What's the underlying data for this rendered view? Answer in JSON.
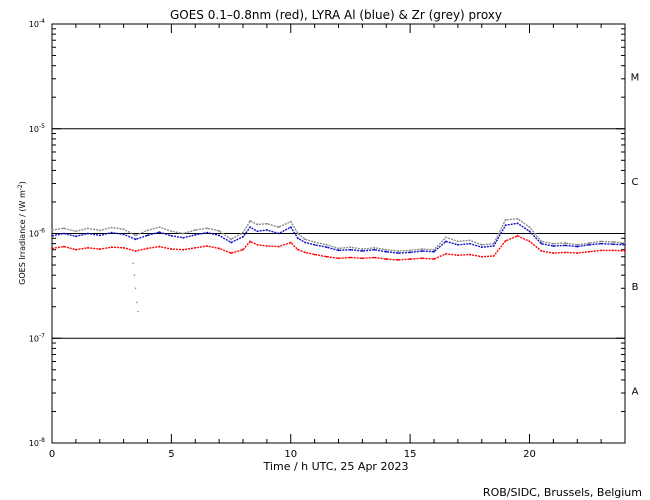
{
  "chart_data": {
    "type": "line",
    "title": "GOES 0.1–0.8nm (red), LYRA Al (blue) & Zr (grey) proxy",
    "xlabel": "Time / h UTC, 25 Apr 2023",
    "ylabel_main": "GOES Irradiance / (W m",
    "ylabel_sup": "-2",
    "ylabel_close": ")",
    "yscale": "log",
    "xlim": [
      0,
      24
    ],
    "ylim_exp": [
      -8,
      -4
    ],
    "x_ticks": [
      "0",
      "5",
      "10",
      "15",
      "20"
    ],
    "y_ticks": [
      {
        "exp": -8,
        "base": "10",
        "sup": "-8"
      },
      {
        "exp": -7,
        "base": "10",
        "sup": "-7"
      },
      {
        "exp": -6,
        "base": "10",
        "sup": "-6"
      },
      {
        "exp": -5,
        "base": "10",
        "sup": "-5"
      },
      {
        "exp": -4,
        "base": "10",
        "sup": "-4"
      }
    ],
    "flare_class_lines_exp": [
      -7,
      -6,
      -5
    ],
    "flare_classes": [
      {
        "label": "A",
        "exp": -7.5
      },
      {
        "label": "B",
        "exp": -6.5
      },
      {
        "label": "C",
        "exp": -5.5
      },
      {
        "label": "M",
        "exp": -4.5
      }
    ],
    "series": [
      {
        "name": "GOES 0.1–0.8nm",
        "color": "#ff0000",
        "x": [
          0,
          0.5,
          1,
          1.5,
          2,
          2.5,
          3,
          3.5,
          4,
          4.5,
          5,
          5.5,
          6,
          6.5,
          7,
          7.5,
          8,
          8.3,
          8.6,
          9,
          9.5,
          10,
          10.3,
          10.6,
          11,
          11.5,
          12,
          12.5,
          13,
          13.5,
          14,
          14.5,
          15,
          15.5,
          16,
          16.5,
          17,
          17.5,
          18,
          18.5,
          19,
          19.5,
          20,
          20.5,
          21,
          21.5,
          22,
          22.5,
          23,
          23.5,
          24
        ],
        "y": [
          7.2e-07,
          7.5e-07,
          7e-07,
          7.3e-07,
          7.1e-07,
          7.4e-07,
          7.3e-07,
          6.8e-07,
          7.2e-07,
          7.5e-07,
          7.1e-07,
          7e-07,
          7.3e-07,
          7.6e-07,
          7.2e-07,
          6.5e-07,
          7e-07,
          8.4e-07,
          7.8e-07,
          7.6e-07,
          7.5e-07,
          8.2e-07,
          7e-07,
          6.6e-07,
          6.3e-07,
          6e-07,
          5.8e-07,
          5.9e-07,
          5.8e-07,
          5.9e-07,
          5.7e-07,
          5.6e-07,
          5.7e-07,
          5.8e-07,
          5.7e-07,
          6.4e-07,
          6.2e-07,
          6.3e-07,
          6e-07,
          6.1e-07,
          8.5e-07,
          9.5e-07,
          8.4e-07,
          6.8e-07,
          6.5e-07,
          6.6e-07,
          6.5e-07,
          6.7e-07,
          6.9e-07,
          6.9e-07,
          6.8e-07
        ]
      },
      {
        "name": "LYRA Al proxy",
        "color": "#1010c8",
        "x": [
          0,
          0.5,
          1,
          1.5,
          2,
          2.5,
          3,
          3.5,
          4,
          4.5,
          5,
          5.5,
          6,
          6.5,
          7,
          7.5,
          8,
          8.3,
          8.6,
          9,
          9.5,
          10,
          10.3,
          10.6,
          11,
          11.5,
          12,
          12.5,
          13,
          13.5,
          14,
          14.5,
          15,
          15.5,
          16,
          16.5,
          17,
          17.5,
          18,
          18.5,
          19,
          19.5,
          20,
          20.5,
          21,
          21.5,
          22,
          22.5,
          23,
          23.5,
          24
        ],
        "y": [
          9.5e-07,
          1e-06,
          9.4e-07,
          1e-06,
          9.6e-07,
          1.02e-06,
          9.8e-07,
          8.8e-07,
          9.6e-07,
          1.03e-06,
          9.5e-07,
          9.1e-07,
          9.7e-07,
          1.02e-06,
          9.6e-07,
          8.2e-07,
          9.3e-07,
          1.15e-06,
          1.05e-06,
          1.08e-06,
          1e-06,
          1.15e-06,
          9e-07,
          8.2e-07,
          7.8e-07,
          7.4e-07,
          6.9e-07,
          7e-07,
          6.8e-07,
          7e-07,
          6.7e-07,
          6.5e-07,
          6.6e-07,
          6.8e-07,
          6.7e-07,
          8.4e-07,
          7.8e-07,
          8e-07,
          7.4e-07,
          7.6e-07,
          1.2e-06,
          1.25e-06,
          1.05e-06,
          8e-07,
          7.6e-07,
          7.7e-07,
          7.5e-07,
          7.8e-07,
          8e-07,
          7.9e-07,
          7.8e-07
        ]
      },
      {
        "name": "LYRA Zr proxy",
        "color": "#8c8c8c",
        "x": [
          0,
          0.5,
          1,
          1.5,
          2,
          2.5,
          3,
          3.5,
          4,
          4.5,
          5,
          5.5,
          6,
          6.5,
          7,
          7.5,
          8,
          8.3,
          8.6,
          9,
          9.5,
          10,
          10.3,
          10.6,
          11,
          11.5,
          12,
          12.5,
          13,
          13.5,
          14,
          14.5,
          15,
          15.5,
          16,
          16.5,
          17,
          17.5,
          18,
          18.5,
          19,
          19.5,
          20,
          20.5,
          21,
          21.5,
          22,
          22.5,
          23,
          23.5,
          24
        ],
        "y": [
          1.08e-06,
          1.12e-06,
          1.05e-06,
          1.12e-06,
          1.07e-06,
          1.14e-06,
          1.1e-06,
          9.6e-07,
          1.07e-06,
          1.15e-06,
          1.05e-06,
          1e-06,
          1.08e-06,
          1.12e-06,
          1.06e-06,
          8.8e-07,
          1.02e-06,
          1.32e-06,
          1.22e-06,
          1.24e-06,
          1.15e-06,
          1.3e-06,
          1e-06,
          8.8e-07,
          8.3e-07,
          7.8e-07,
          7.2e-07,
          7.4e-07,
          7.1e-07,
          7.3e-07,
          7e-07,
          6.8e-07,
          6.9e-07,
          7.1e-07,
          7e-07,
          9.2e-07,
          8.4e-07,
          8.6e-07,
          7.8e-07,
          8e-07,
          1.35e-06,
          1.38e-06,
          1.15e-06,
          8.4e-07,
          8e-07,
          8.1e-07,
          7.8e-07,
          8.1e-07,
          8.4e-07,
          8.3e-07,
          8.1e-07
        ]
      }
    ],
    "outliers": {
      "color": "#8c8c8c",
      "x": [
        3.4,
        3.45,
        3.5,
        3.55,
        3.6
      ],
      "y": [
        5.2e-07,
        4e-07,
        3e-07,
        2.2e-07,
        1.8e-07
      ]
    }
  },
  "credit": "ROB/SIDC, Brussels, Belgium"
}
